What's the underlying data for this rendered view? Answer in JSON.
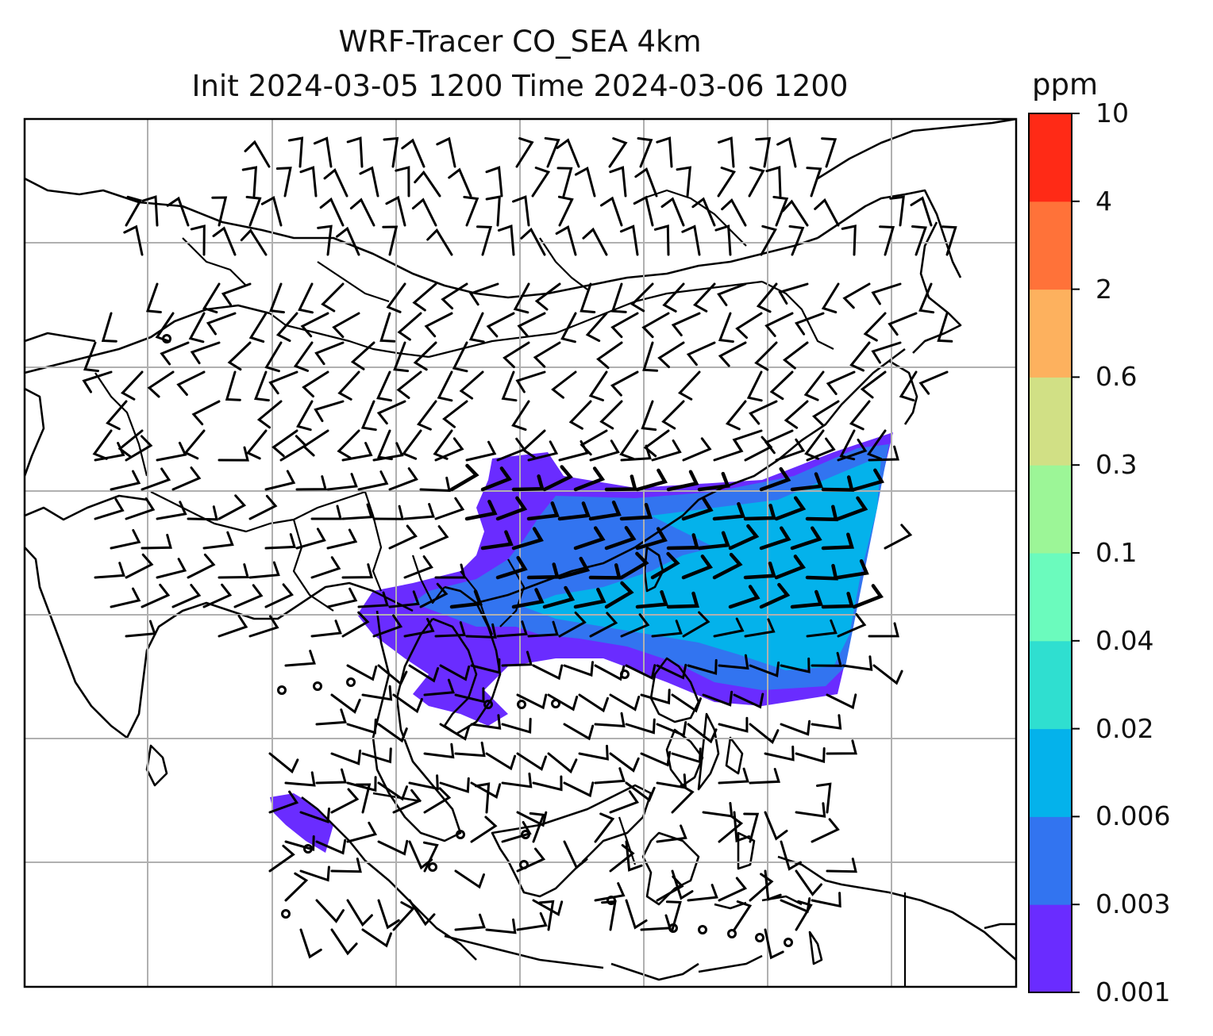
{
  "title": {
    "line1": "WRF-Tracer CO_SEA 4km",
    "line2": "Init 2024-03-05 1200 Time 2024-03-06 1200"
  },
  "colorbar": {
    "unit": "ppm",
    "levels": [
      "0.001",
      "0.003",
      "0.006",
      "0.02",
      "0.04",
      "0.1",
      "0.3",
      "0.6",
      "2",
      "4",
      "10"
    ],
    "colors": [
      "#6a2cff",
      "#3274f0",
      "#04b2eb",
      "#2fdfd0",
      "#6bfbbd",
      "#9cf697",
      "#d1e085",
      "#fdb15e",
      "#ff7239",
      "#ff2a16"
    ]
  },
  "map": {
    "gridlines": true,
    "features": [
      "coastlines",
      "country-borders",
      "wind-barbs",
      "gridlines"
    ],
    "plume_color_low": "#6a2cff",
    "plume_color_mid": "#3274f0",
    "plume_color_high": "#04b2eb"
  }
}
